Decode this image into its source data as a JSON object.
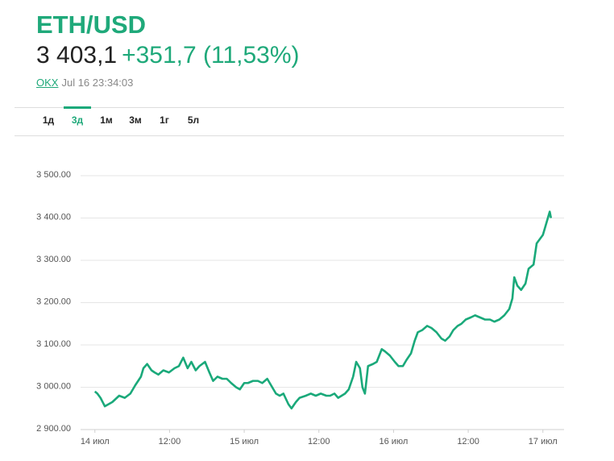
{
  "header": {
    "title": "ETH/USD",
    "price": "3 403,1",
    "change": "+351,7 (11,53%)",
    "source": "OKX",
    "timestamp": "Jul 16 23:34:03"
  },
  "tabs": [
    "1д",
    "3д",
    "1м",
    "3м",
    "1г",
    "5л"
  ],
  "active_tab": 1,
  "chart_data": {
    "type": "line",
    "color": "#1aa97a",
    "grid": true,
    "xlim": [
      -2.3,
      75.4
    ],
    "ylim": [
      2900,
      3500
    ],
    "xticks": [
      {
        "value": 0,
        "label": "14 июл"
      },
      {
        "value": 12,
        "label": "12:00"
      },
      {
        "value": 24,
        "label": "15 июл"
      },
      {
        "value": 36,
        "label": "12:00"
      },
      {
        "value": 48,
        "label": "16 июл"
      },
      {
        "value": 60,
        "label": "12:00"
      },
      {
        "value": 72,
        "label": "17 июл"
      }
    ],
    "yticks": [
      {
        "value": 2900,
        "label": "2 900.00"
      },
      {
        "value": 3000,
        "label": "3 000.00"
      },
      {
        "value": 3100,
        "label": "3 100.00"
      },
      {
        "value": 3200,
        "label": "3 200.00"
      },
      {
        "value": 3300,
        "label": "3 300.00"
      },
      {
        "value": 3400,
        "label": "3 400.00"
      },
      {
        "value": 3500,
        "label": "3 500.00"
      }
    ],
    "x": [
      0,
      0.4,
      0.9,
      1.6,
      2.2,
      2.8,
      3.9,
      4.8,
      5.7,
      6.5,
      7.4,
      7.8,
      8.4,
      9.1,
      9.6,
      10.2,
      11.0,
      11.9,
      12.8,
      13.5,
      14.2,
      14.9,
      15.5,
      16.2,
      16.8,
      17.7,
      18.4,
      19.0,
      19.7,
      20.5,
      21.2,
      21.9,
      22.7,
      23.3,
      24.0,
      24.6,
      25.4,
      26.2,
      26.9,
      27.7,
      28.5,
      29.1,
      29.7,
      30.3,
      31.1,
      31.6,
      32.3,
      32.9,
      33.9,
      34.7,
      35.5,
      36.3,
      37.2,
      37.8,
      38.5,
      39.1,
      40.2,
      40.8,
      41.5,
      42.0,
      42.6,
      43.0,
      43.4,
      43.9,
      44.7,
      45.3,
      46.1,
      46.6,
      47.4,
      48.2,
      48.8,
      49.5,
      50.1,
      50.8,
      51.4,
      51.9,
      52.6,
      53.4,
      54.1,
      54.9,
      55.7,
      56.3,
      57.0,
      57.6,
      58.3,
      58.9,
      59.6,
      60.4,
      61.1,
      61.9,
      62.7,
      63.5,
      64.2,
      65.0,
      65.8,
      66.6,
      67.1,
      67.4,
      67.9,
      68.5,
      69.2,
      69.7,
      70.5,
      71.0,
      71.5,
      72.0,
      72.5,
      73.1,
      73.3
    ],
    "values": [
      2990,
      2985,
      2975,
      2955,
      2960,
      2965,
      2980,
      2975,
      2985,
      3005,
      3025,
      3045,
      3055,
      3040,
      3035,
      3030,
      3040,
      3035,
      3045,
      3050,
      3070,
      3045,
      3060,
      3040,
      3050,
      3060,
      3035,
      3015,
      3025,
      3020,
      3020,
      3010,
      3000,
      2995,
      3010,
      3010,
      3015,
      3015,
      3010,
      3020,
      3000,
      2985,
      2980,
      2985,
      2960,
      2950,
      2965,
      2975,
      2980,
      2985,
      2980,
      2985,
      2980,
      2980,
      2985,
      2975,
      2985,
      2995,
      3025,
      3060,
      3045,
      3000,
      2985,
      3050,
      3055,
      3060,
      3090,
      3085,
      3075,
      3060,
      3050,
      3050,
      3065,
      3080,
      3110,
      3130,
      3135,
      3145,
      3140,
      3130,
      3115,
      3110,
      3120,
      3135,
      3145,
      3150,
      3160,
      3165,
      3170,
      3165,
      3160,
      3160,
      3155,
      3160,
      3170,
      3185,
      3210,
      3260,
      3240,
      3230,
      3245,
      3280,
      3290,
      3340,
      3350,
      3360,
      3385,
      3415,
      3400
    ]
  }
}
